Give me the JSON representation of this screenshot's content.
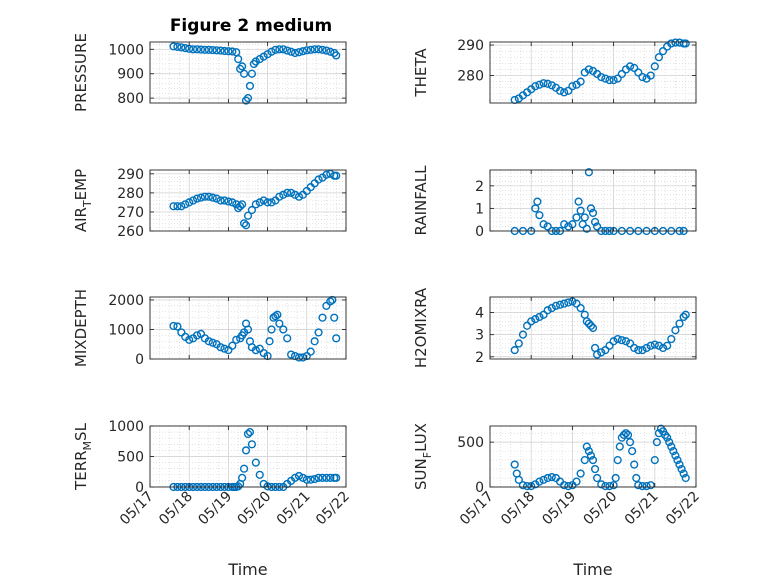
{
  "figure": {
    "title": "Figure 2 medium",
    "marker_color": "#0072BD",
    "x_tick_labels": [
      "05/17",
      "05/18",
      "05/19",
      "05/20",
      "05/21",
      "05/22"
    ],
    "x_axis_label": "Time"
  },
  "chart_data": [
    {
      "type": "scatter",
      "ylabel": "PRESSURE",
      "xlim": [
        17,
        22
      ],
      "ylim": [
        780,
        1030
      ],
      "yticks": [
        800,
        900,
        1000
      ],
      "x": [
        17.6,
        17.7,
        17.8,
        17.9,
        18.0,
        18.1,
        18.2,
        18.3,
        18.4,
        18.5,
        18.6,
        18.7,
        18.8,
        18.9,
        19.0,
        19.1,
        19.2,
        19.25,
        19.3,
        19.35,
        19.4,
        19.45,
        19.5,
        19.55,
        19.6,
        19.65,
        19.7,
        19.8,
        19.9,
        20.0,
        20.1,
        20.2,
        20.3,
        20.4,
        20.5,
        20.6,
        20.7,
        20.8,
        20.9,
        21.0,
        21.1,
        21.2,
        21.3,
        21.4,
        21.5,
        21.6,
        21.7,
        21.75
      ],
      "y": [
        1012,
        1010,
        1008,
        1005,
        1002,
        1000,
        1000,
        999,
        998,
        998,
        997,
        996,
        995,
        993,
        992,
        991,
        988,
        960,
        920,
        930,
        900,
        790,
        800,
        850,
        900,
        940,
        950,
        960,
        970,
        980,
        990,
        998,
        1000,
        1000,
        995,
        990,
        985,
        988,
        992,
        996,
        998,
        1000,
        1000,
        998,
        995,
        990,
        985,
        975
      ]
    },
    {
      "type": "scatter",
      "ylabel": "THETA",
      "xlim": [
        17,
        22
      ],
      "ylim": [
        271,
        291
      ],
      "yticks": [
        280,
        290
      ],
      "x": [
        17.6,
        17.7,
        17.8,
        17.9,
        18.0,
        18.1,
        18.2,
        18.3,
        18.4,
        18.5,
        18.6,
        18.7,
        18.8,
        18.9,
        19.0,
        19.1,
        19.2,
        19.3,
        19.4,
        19.5,
        19.6,
        19.7,
        19.8,
        19.9,
        20.0,
        20.1,
        20.2,
        20.3,
        20.4,
        20.5,
        20.6,
        20.7,
        20.8,
        20.9,
        21.0,
        21.1,
        21.2,
        21.3,
        21.4,
        21.5,
        21.6,
        21.7,
        21.75
      ],
      "y": [
        272,
        272.5,
        273.5,
        274.5,
        275.5,
        276.5,
        277,
        277.5,
        277.3,
        276.8,
        276,
        275,
        274.5,
        275,
        276.5,
        277,
        278,
        281,
        282,
        281.5,
        280.5,
        279.5,
        279,
        278.5,
        278.5,
        279,
        280.5,
        282,
        283,
        282.5,
        281,
        279.5,
        279,
        280,
        283,
        286,
        288,
        289.5,
        290.5,
        290.8,
        290.8,
        290.5,
        290.5
      ]
    },
    {
      "type": "scatter",
      "ylabel": "AIR_TEMP",
      "xlim": [
        17,
        22
      ],
      "ylim": [
        260,
        292
      ],
      "yticks": [
        260,
        270,
        280,
        290
      ],
      "x": [
        17.6,
        17.7,
        17.8,
        17.9,
        18.0,
        18.1,
        18.2,
        18.3,
        18.4,
        18.5,
        18.6,
        18.7,
        18.8,
        18.9,
        19.0,
        19.1,
        19.2,
        19.25,
        19.3,
        19.35,
        19.4,
        19.45,
        19.5,
        19.6,
        19.7,
        19.8,
        19.9,
        20.0,
        20.1,
        20.2,
        20.3,
        20.4,
        20.5,
        20.6,
        20.7,
        20.8,
        20.9,
        21.0,
        21.1,
        21.2,
        21.3,
        21.4,
        21.5,
        21.6,
        21.7,
        21.75
      ],
      "y": [
        273,
        273,
        273,
        274,
        275,
        276,
        277,
        277.5,
        278,
        278,
        277.5,
        277,
        276,
        276,
        275.5,
        275,
        274,
        272,
        273,
        274,
        264,
        263,
        268,
        271,
        274,
        275,
        276,
        275,
        275,
        276,
        278,
        279,
        280,
        280,
        279,
        278,
        279,
        281,
        283,
        285,
        287,
        288,
        289.5,
        290,
        289,
        289
      ]
    },
    {
      "type": "scatter",
      "ylabel": "RAINFALL",
      "xlim": [
        17,
        22
      ],
      "ylim": [
        0,
        2.7
      ],
      "yticks": [
        0,
        1,
        2
      ],
      "x": [
        17.6,
        17.8,
        18.0,
        18.1,
        18.15,
        18.2,
        18.3,
        18.4,
        18.5,
        18.6,
        18.7,
        18.8,
        18.9,
        19.0,
        19.1,
        19.15,
        19.2,
        19.25,
        19.3,
        19.35,
        19.4,
        19.45,
        19.5,
        19.55,
        19.6,
        19.7,
        19.8,
        19.9,
        20.0,
        20.2,
        20.4,
        20.6,
        20.8,
        21.0,
        21.2,
        21.4,
        21.6,
        21.7
      ],
      "y": [
        0,
        0,
        0,
        1.0,
        1.3,
        0.7,
        0.3,
        0.2,
        0,
        0,
        0,
        0.3,
        0.2,
        0.3,
        0.6,
        1.3,
        0.9,
        0.3,
        0.6,
        0.1,
        2.6,
        1.0,
        0.8,
        0.4,
        0.2,
        0,
        0,
        0,
        0,
        0,
        0,
        0,
        0,
        0,
        0,
        0,
        0,
        0
      ]
    },
    {
      "type": "scatter",
      "ylabel": "MIXDEPTH",
      "xlim": [
        17,
        22
      ],
      "ylim": [
        0,
        2100
      ],
      "yticks": [
        0,
        1000,
        2000
      ],
      "x": [
        17.6,
        17.7,
        17.8,
        17.9,
        18.0,
        18.1,
        18.2,
        18.3,
        18.4,
        18.5,
        18.6,
        18.7,
        18.8,
        18.9,
        19.0,
        19.1,
        19.2,
        19.3,
        19.35,
        19.4,
        19.45,
        19.5,
        19.55,
        19.6,
        19.7,
        19.8,
        19.9,
        20.0,
        20.05,
        20.1,
        20.15,
        20.2,
        20.25,
        20.3,
        20.4,
        20.5,
        20.6,
        20.7,
        20.8,
        20.9,
        21.0,
        21.1,
        21.2,
        21.3,
        21.4,
        21.5,
        21.6,
        21.65,
        21.7,
        21.75
      ],
      "y": [
        1120,
        1100,
        900,
        750,
        650,
        700,
        800,
        850,
        700,
        600,
        550,
        500,
        400,
        350,
        300,
        450,
        650,
        700,
        800,
        900,
        1200,
        1000,
        600,
        400,
        300,
        350,
        200,
        100,
        600,
        1000,
        1400,
        1450,
        1500,
        1200,
        1000,
        700,
        150,
        100,
        50,
        50,
        100,
        250,
        600,
        900,
        1400,
        1800,
        1950,
        2000,
        1400,
        700
      ]
    },
    {
      "type": "scatter",
      "ylabel": "H2OMIXRA",
      "xlim": [
        17,
        22
      ],
      "ylim": [
        1.9,
        4.7
      ],
      "yticks": [
        2,
        3,
        4
      ],
      "x": [
        17.6,
        17.7,
        17.8,
        17.9,
        18.0,
        18.1,
        18.2,
        18.3,
        18.4,
        18.5,
        18.6,
        18.7,
        18.8,
        18.9,
        19.0,
        19.1,
        19.2,
        19.3,
        19.35,
        19.4,
        19.45,
        19.5,
        19.55,
        19.6,
        19.7,
        19.8,
        19.9,
        20.0,
        20.1,
        20.2,
        20.3,
        20.4,
        20.5,
        20.6,
        20.7,
        20.8,
        20.9,
        21.0,
        21.1,
        21.2,
        21.3,
        21.4,
        21.5,
        21.6,
        21.7,
        21.75
      ],
      "y": [
        2.3,
        2.6,
        3.0,
        3.4,
        3.6,
        3.7,
        3.8,
        3.9,
        4.1,
        4.2,
        4.3,
        4.35,
        4.4,
        4.45,
        4.5,
        4.4,
        4.2,
        3.9,
        3.6,
        3.5,
        3.4,
        3.3,
        2.4,
        2.1,
        2.2,
        2.3,
        2.5,
        2.7,
        2.8,
        2.75,
        2.7,
        2.6,
        2.4,
        2.3,
        2.3,
        2.4,
        2.5,
        2.55,
        2.5,
        2.4,
        2.5,
        2.8,
        3.2,
        3.5,
        3.8,
        3.9
      ]
    },
    {
      "type": "scatter",
      "ylabel": "TERR_MSL",
      "xlim": [
        17,
        22
      ],
      "ylim": [
        0,
        1000
      ],
      "yticks": [
        0,
        500,
        1000
      ],
      "x": [
        17.6,
        17.7,
        17.8,
        17.9,
        18.0,
        18.1,
        18.2,
        18.3,
        18.4,
        18.5,
        18.6,
        18.7,
        18.8,
        18.9,
        19.0,
        19.1,
        19.15,
        19.2,
        19.25,
        19.3,
        19.35,
        19.4,
        19.45,
        19.5,
        19.55,
        19.6,
        19.7,
        19.8,
        19.9,
        20.0,
        20.1,
        20.2,
        20.3,
        20.4,
        20.5,
        20.6,
        20.7,
        20.8,
        20.9,
        21.0,
        21.1,
        21.2,
        21.3,
        21.4,
        21.5,
        21.6,
        21.7,
        21.75
      ],
      "y": [
        0,
        0,
        0,
        0,
        0,
        0,
        0,
        0,
        0,
        0,
        0,
        0,
        0,
        0,
        0,
        0,
        0,
        0,
        10,
        50,
        150,
        300,
        600,
        870,
        900,
        700,
        400,
        200,
        50,
        10,
        0,
        0,
        0,
        0,
        50,
        100,
        150,
        180,
        150,
        120,
        120,
        130,
        150,
        150,
        150,
        150,
        150,
        150
      ]
    },
    {
      "type": "scatter",
      "ylabel": "SUN_FLUX",
      "xlim": [
        17,
        22
      ],
      "ylim": [
        0,
        680
      ],
      "yticks": [
        0,
        500
      ],
      "x": [
        17.6,
        17.65,
        17.7,
        17.8,
        17.9,
        18.0,
        18.1,
        18.2,
        18.3,
        18.4,
        18.5,
        18.6,
        18.7,
        18.8,
        18.9,
        19.0,
        19.1,
        19.2,
        19.3,
        19.35,
        19.4,
        19.45,
        19.5,
        19.55,
        19.6,
        19.7,
        19.8,
        19.9,
        20.0,
        20.05,
        20.1,
        20.15,
        20.2,
        20.25,
        20.3,
        20.35,
        20.4,
        20.45,
        20.5,
        20.55,
        20.6,
        20.7,
        20.8,
        20.9,
        21.0,
        21.05,
        21.1,
        21.15,
        21.2,
        21.25,
        21.3,
        21.35,
        21.4,
        21.45,
        21.5,
        21.55,
        21.6,
        21.65,
        21.7,
        21.75
      ],
      "y": [
        250,
        150,
        80,
        20,
        10,
        10,
        30,
        60,
        80,
        100,
        110,
        100,
        60,
        20,
        10,
        20,
        60,
        150,
        300,
        450,
        400,
        350,
        300,
        200,
        100,
        30,
        10,
        10,
        20,
        100,
        300,
        450,
        550,
        580,
        600,
        580,
        500,
        400,
        250,
        100,
        20,
        10,
        10,
        20,
        300,
        500,
        600,
        650,
        620,
        580,
        550,
        500,
        450,
        400,
        350,
        300,
        250,
        200,
        150,
        100
      ]
    }
  ]
}
